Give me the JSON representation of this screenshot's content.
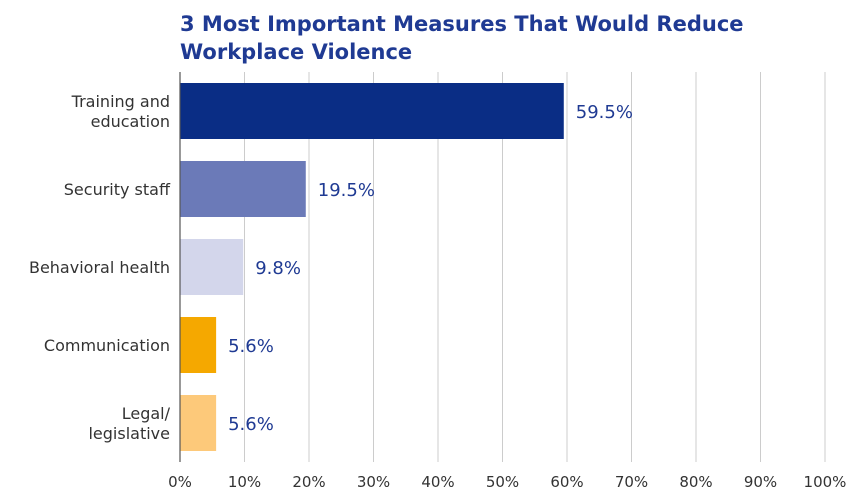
{
  "chart_data": {
    "type": "bar",
    "orientation": "horizontal",
    "title": "3 Most Important Measures That Would Reduce Workplace Violence",
    "categories": [
      [
        "Training and",
        "education"
      ],
      [
        "Security staff"
      ],
      [
        "Behavioral health"
      ],
      [
        "Communication"
      ],
      [
        "Legal/",
        "legislative"
      ]
    ],
    "values": [
      59.5,
      19.5,
      9.8,
      5.6,
      5.6
    ],
    "value_labels": [
      "59.5%",
      "19.5%",
      "9.8%",
      "5.6%",
      "5.6%"
    ],
    "colors": [
      "#0a2d85",
      "#6b7ab8",
      "#d3d6eb",
      "#f5a800",
      "#fdc97a"
    ],
    "xlim": [
      0,
      100
    ],
    "x_ticks": [
      0,
      10,
      20,
      30,
      40,
      50,
      60,
      70,
      80,
      90,
      100
    ],
    "x_tick_labels": [
      "0%",
      "10%",
      "20%",
      "30%",
      "40%",
      "50%",
      "60%",
      "70%",
      "80%",
      "90%",
      "100%"
    ],
    "grid": true,
    "label_color": "#1f3a93"
  }
}
